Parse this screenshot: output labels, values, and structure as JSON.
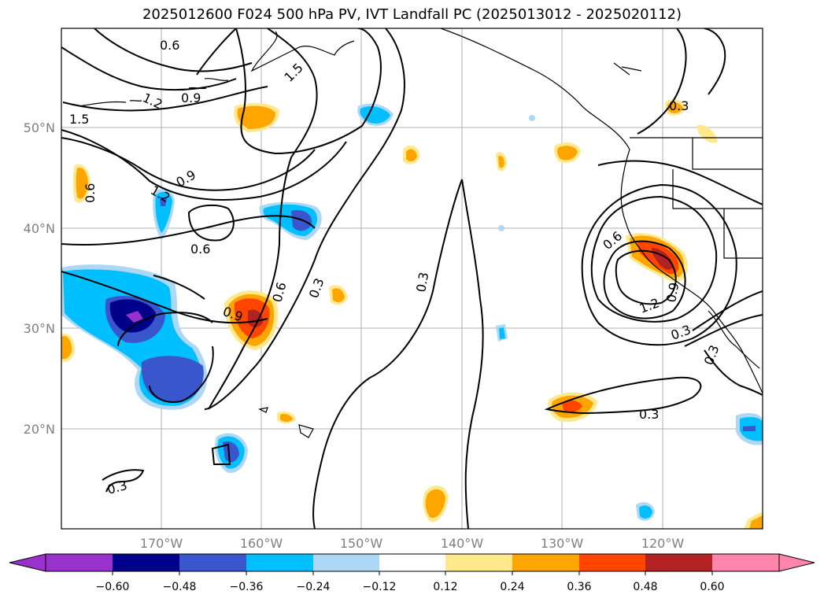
{
  "title": "2025012600 F024 500 hPa PV, IVT Landfall PC (2025013012 - 2025020112)",
  "lat_labels": [
    "50°N",
    "40°N",
    "30°N",
    "20°N"
  ],
  "lon_labels": [
    "170°W",
    "160°W",
    "150°W",
    "140°W",
    "130°W",
    "120°W"
  ],
  "contour_labels": [
    "0.6",
    "1.2",
    "0.9",
    "1.5",
    "1.5",
    "0.6",
    "1.2",
    "0.9",
    "0.6",
    "0.9",
    "0.6",
    "0.3",
    "0.3",
    "0.3",
    "0.6",
    "1.2",
    "0.9",
    "0.3",
    "0.3",
    "0.3",
    "0.3"
  ],
  "colorbar": {
    "ticks": [
      "−0.60",
      "−0.48",
      "−0.36",
      "−0.24",
      "−0.12",
      "0.12",
      "0.24",
      "0.36",
      "0.48",
      "0.60"
    ],
    "colors": [
      "#9932cc",
      "#00008b",
      "#3a56cc",
      "#00bfff",
      "#add8f5",
      "#ffffff",
      "#ffe98c",
      "#ffa500",
      "#ff4500",
      "#b22222",
      "#ff85ad"
    ]
  }
}
